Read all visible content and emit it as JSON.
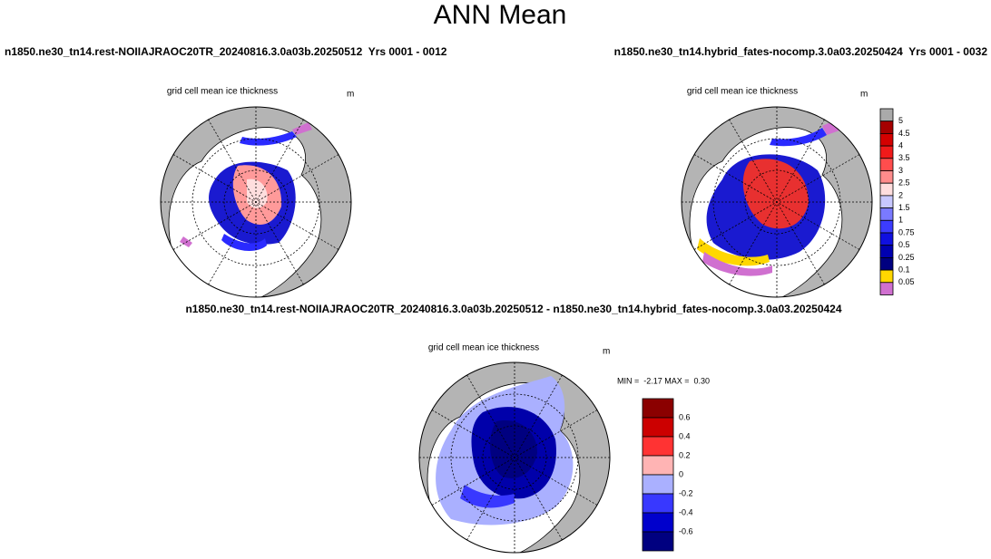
{
  "title": "ANN Mean",
  "panels": [
    {
      "case": "n1850.ne30_tn14.rest-NOIIAJRAOC20TR_20240816.3.0a03b.20250512  Yrs 0001 - 0012",
      "subtitle": "grid cell mean ice thickness",
      "units": "m"
    },
    {
      "case": "n1850.ne30_tn14.hybrid_fates-nocomp.3.0a03.20250424  Yrs 0001 - 0032",
      "subtitle": "grid cell mean ice thickness",
      "units": "m"
    },
    {
      "case": "n1850.ne30_tn14.rest-NOIIAJRAOC20TR_20240816.3.0a03b.20250512 - n1850.ne30_tn14.hybrid_fates-nocomp.3.0a03.20250424",
      "subtitle": "grid cell mean ice thickness",
      "units": "m",
      "stats": "MIN =  -2.17 MAX =  0.30"
    }
  ],
  "colorbars": [
    {
      "labels": [
        "5",
        "4.5",
        "4",
        "3.5",
        "3",
        "2.5",
        "2",
        "1.5",
        "1",
        "0.75",
        "0.5",
        "0.25",
        "0.1",
        "0.05"
      ],
      "colors": [
        "#aaaaaa",
        "#a50000",
        "#d40000",
        "#f01a1a",
        "#ff4d4d",
        "#ff8c8c",
        "#ffdede",
        "#c8c8ff",
        "#7a7aff",
        "#3c3cff",
        "#1010e0",
        "#0000b0",
        "#000080",
        "#ffd700",
        "#d070d0"
      ]
    },
    {
      "labels": [
        "0.6",
        "0.4",
        "0.2",
        "0",
        "-0.2",
        "-0.4",
        "-0.6"
      ],
      "colors": [
        "#8b0000",
        "#cc0000",
        "#ff3333",
        "#ffb4b4",
        "#aab0ff",
        "#3838ff",
        "#0000cc",
        "#000080"
      ]
    }
  ]
}
